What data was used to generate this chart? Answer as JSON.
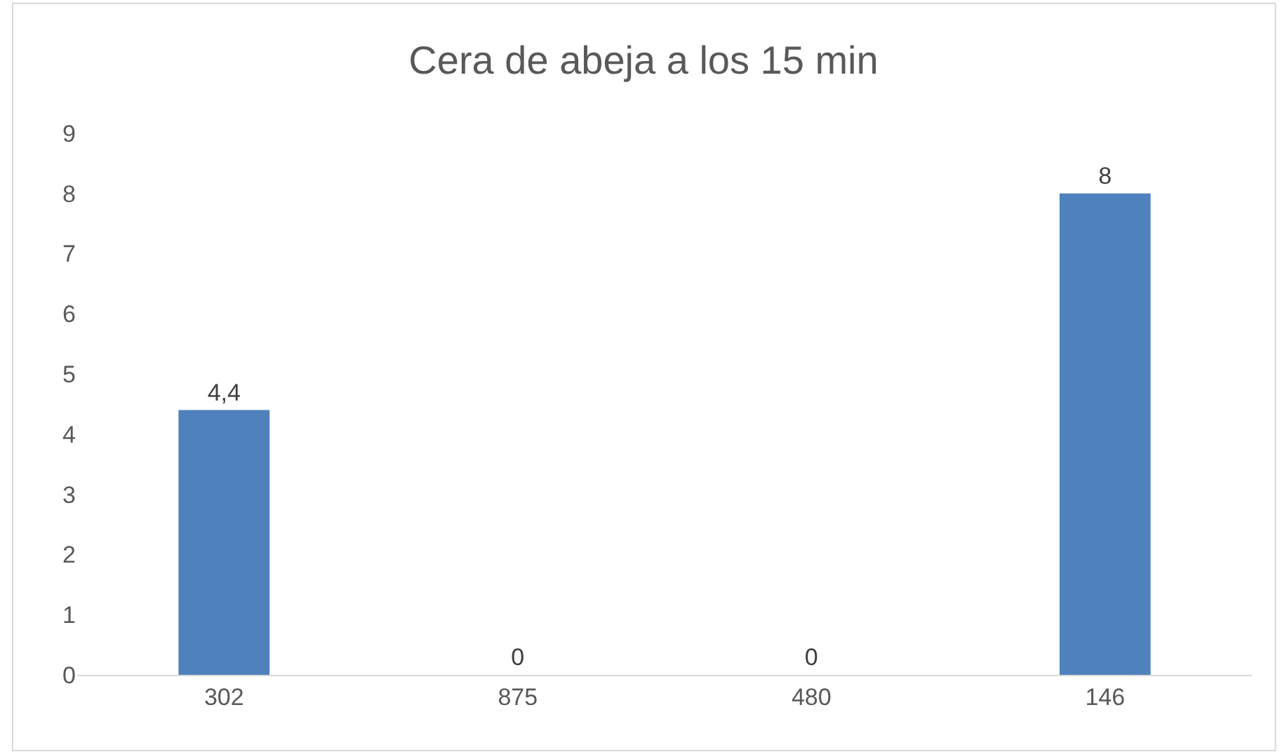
{
  "chart_data": {
    "type": "bar",
    "title": "Cera de abeja a los 15 min",
    "categories": [
      "302",
      "875",
      "480",
      "146"
    ],
    "values": [
      4.4,
      0,
      0,
      8
    ],
    "value_labels": [
      "4,4",
      "0",
      "0",
      "8"
    ],
    "color": "#4f81bd",
    "ylim": [
      0,
      9
    ],
    "yticks": [
      0,
      1,
      2,
      3,
      4,
      5,
      6,
      7,
      8,
      9
    ],
    "grid": false,
    "legend": false
  }
}
